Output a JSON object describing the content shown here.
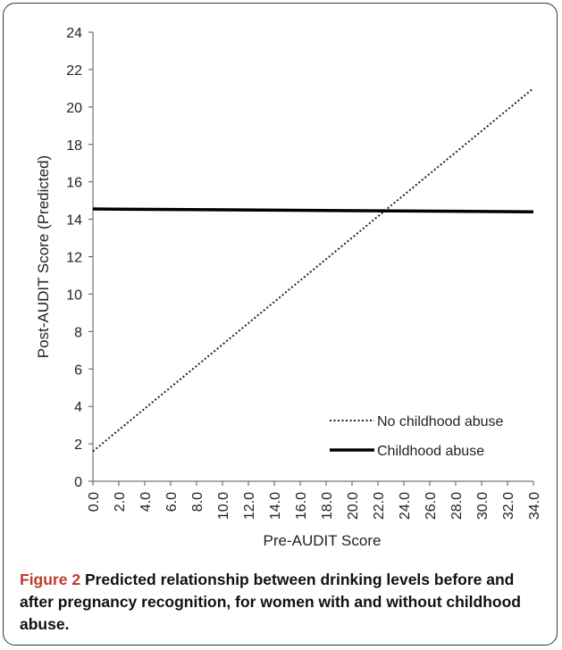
{
  "chart_data": {
    "type": "line",
    "xlabel": "Pre-AUDIT Score",
    "ylabel": "Post-AUDIT Score (Predicted)",
    "xlim": [
      0,
      34
    ],
    "ylim": [
      0,
      24
    ],
    "x_ticks": [
      "0.0",
      "2.0",
      "4.0",
      "6.0",
      "8.0",
      "10.0",
      "12.0",
      "14.0",
      "16.0",
      "18.0",
      "20.0",
      "22.0",
      "24.0",
      "26.0",
      "28.0",
      "30.0",
      "32.0",
      "34.0"
    ],
    "y_ticks": [
      "0",
      "2",
      "4",
      "6",
      "8",
      "10",
      "12",
      "14",
      "16",
      "18",
      "20",
      "22",
      "24"
    ],
    "grid": false,
    "legend_position": "bottom-right",
    "series": [
      {
        "name": "No childhood abuse",
        "style": "dotted",
        "color": "#222222",
        "x": [
          0,
          34
        ],
        "y": [
          1.6,
          21.0
        ]
      },
      {
        "name": "Childhood abuse",
        "style": "solid",
        "color": "#000000",
        "x": [
          0,
          34
        ],
        "y": [
          14.55,
          14.4
        ]
      }
    ]
  },
  "caption": {
    "label": "Figure 2",
    "text": "Predicted relationship between drinking levels before and after pregnancy recognition, for women with and without childhood abuse."
  }
}
